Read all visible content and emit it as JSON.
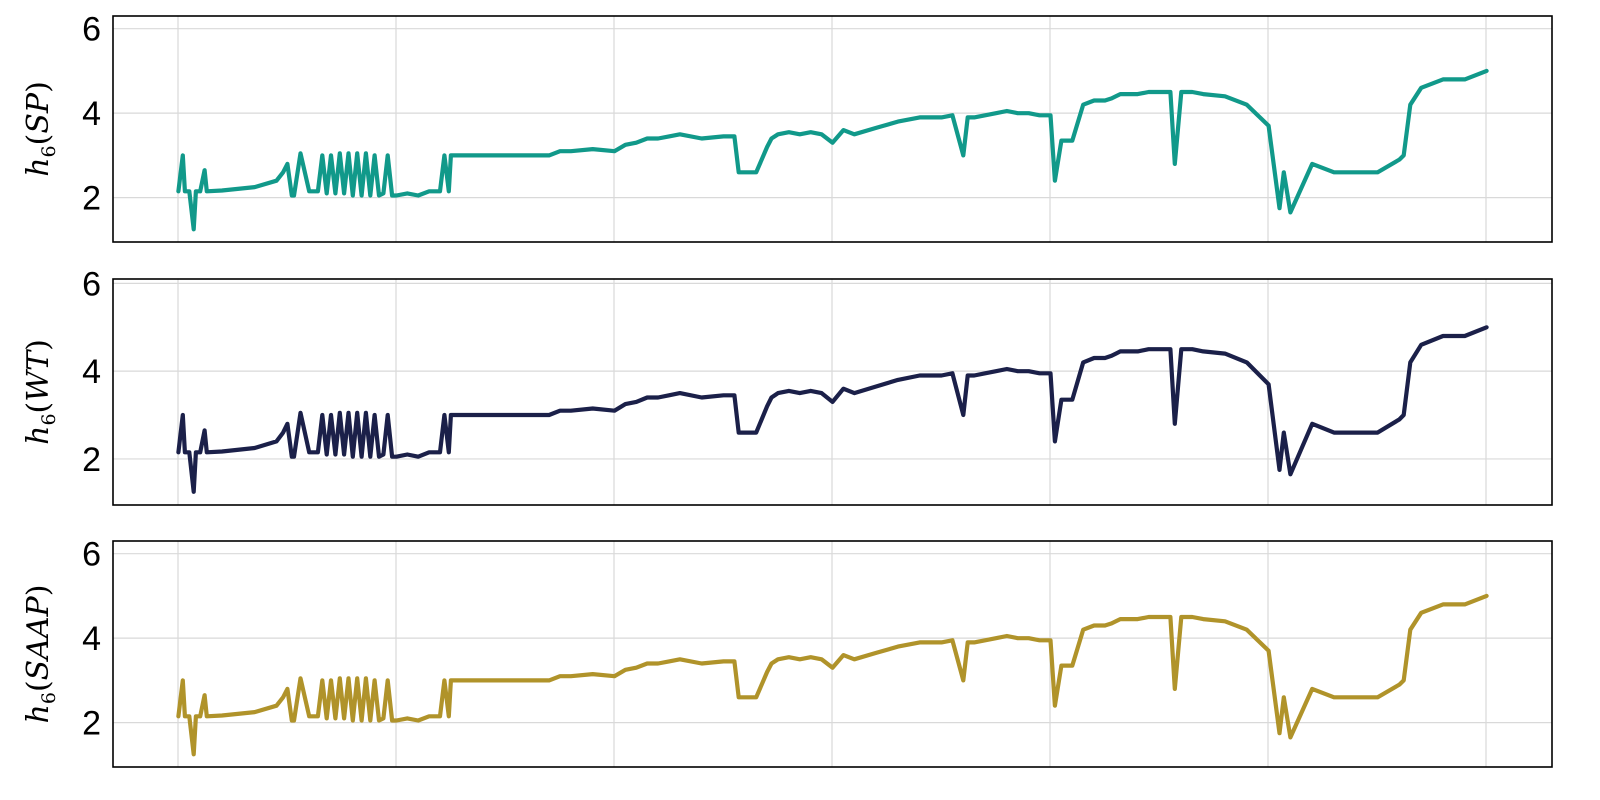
{
  "chart_data": [
    {
      "type": "line",
      "ylabel_parts": {
        "fn": "h",
        "sub": "6",
        "arg": "SP"
      },
      "color": "#11998a",
      "yticks": [
        2,
        4,
        6
      ],
      "ylim": [
        0.95,
        6.3
      ],
      "xlim": [
        -0.3,
        6.3
      ],
      "grid": true,
      "series": [
        {
          "values_ref": "shared"
        }
      ]
    },
    {
      "type": "line",
      "ylabel_parts": {
        "fn": "h",
        "sub": "6",
        "arg": "WT"
      },
      "color": "#1b2049",
      "yticks": [
        2,
        4,
        6
      ],
      "ylim": [
        0.95,
        6.1
      ],
      "xlim": [
        -0.3,
        6.3
      ],
      "grid": true,
      "series": [
        {
          "values_ref": "shared"
        }
      ]
    },
    {
      "type": "line",
      "ylabel_parts": {
        "fn": "h",
        "sub": "6",
        "arg": "SAAP"
      },
      "color": "#b0932a",
      "yticks": [
        2,
        4,
        6
      ],
      "ylim": [
        0.95,
        6.3
      ],
      "xlim": [
        -0.3,
        6.3
      ],
      "grid": true,
      "series": [
        {
          "values_ref": "shared"
        }
      ]
    }
  ],
  "shared_series": {
    "x": [
      0.0,
      0.02,
      0.03,
      0.05,
      0.07,
      0.08,
      0.1,
      0.12,
      0.13,
      0.2,
      0.35,
      0.45,
      0.48,
      0.5,
      0.52,
      0.53,
      0.56,
      0.6,
      0.62,
      0.64,
      0.66,
      0.68,
      0.7,
      0.72,
      0.74,
      0.76,
      0.78,
      0.8,
      0.82,
      0.84,
      0.86,
      0.88,
      0.9,
      0.92,
      0.94,
      0.96,
      0.98,
      1.0,
      1.05,
      1.1,
      1.15,
      1.2,
      1.22,
      1.24,
      1.25,
      1.27,
      1.3,
      1.35,
      1.4,
      1.5,
      1.6,
      1.7,
      1.75,
      1.8,
      1.9,
      2.0,
      2.05,
      2.1,
      2.15,
      2.2,
      2.25,
      2.3,
      2.4,
      2.5,
      2.55,
      2.57,
      2.6,
      2.65,
      2.7,
      2.72,
      2.75,
      2.8,
      2.85,
      2.9,
      2.95,
      3.0,
      3.05,
      3.1,
      3.2,
      3.3,
      3.4,
      3.5,
      3.55,
      3.6,
      3.62,
      3.65,
      3.7,
      3.75,
      3.8,
      3.85,
      3.9,
      3.95,
      4.0,
      4.02,
      4.05,
      4.1,
      4.15,
      4.2,
      4.25,
      4.28,
      4.3,
      4.32,
      4.34,
      4.36,
      4.38,
      4.4,
      4.45,
      4.5,
      4.52,
      4.55,
      4.57,
      4.6,
      4.65,
      4.7,
      4.8,
      4.9,
      5.0,
      5.05,
      5.07,
      5.1,
      5.2,
      5.3,
      5.4,
      5.5,
      5.6,
      5.62,
      5.65,
      5.7,
      5.8,
      5.9,
      6.0
    ],
    "y": [
      2.15,
      3.0,
      2.15,
      2.15,
      1.25,
      2.15,
      2.15,
      2.65,
      2.15,
      2.17,
      2.25,
      2.4,
      2.6,
      2.8,
      2.05,
      2.05,
      3.05,
      2.15,
      2.15,
      2.15,
      3.0,
      2.1,
      3.0,
      2.1,
      3.05,
      2.1,
      3.05,
      2.05,
      3.05,
      2.05,
      3.05,
      2.05,
      3.0,
      2.05,
      2.1,
      3.0,
      2.05,
      2.05,
      2.1,
      2.05,
      2.15,
      2.15,
      3.0,
      2.15,
      3.0,
      3.0,
      3.0,
      3.0,
      3.0,
      3.0,
      3.0,
      3.0,
      3.1,
      3.1,
      3.15,
      3.1,
      3.25,
      3.3,
      3.4,
      3.4,
      3.45,
      3.5,
      3.4,
      3.45,
      3.45,
      2.6,
      2.6,
      2.6,
      3.2,
      3.4,
      3.5,
      3.55,
      3.5,
      3.55,
      3.5,
      3.3,
      3.6,
      3.5,
      3.65,
      3.8,
      3.9,
      3.9,
      3.95,
      3.0,
      3.9,
      3.9,
      3.95,
      4.0,
      4.05,
      4.0,
      4.0,
      3.95,
      3.95,
      2.4,
      3.35,
      3.35,
      4.2,
      4.3,
      4.3,
      4.35,
      4.4,
      4.45,
      4.45,
      4.45,
      4.45,
      4.45,
      4.5,
      4.5,
      4.5,
      4.5,
      2.8,
      4.5,
      4.5,
      4.45,
      4.4,
      4.2,
      3.7,
      1.75,
      2.6,
      1.65,
      2.8,
      2.6,
      2.6,
      2.6,
      2.9,
      3.0,
      4.2,
      4.6,
      4.8,
      4.8,
      5.0
    ]
  }
}
